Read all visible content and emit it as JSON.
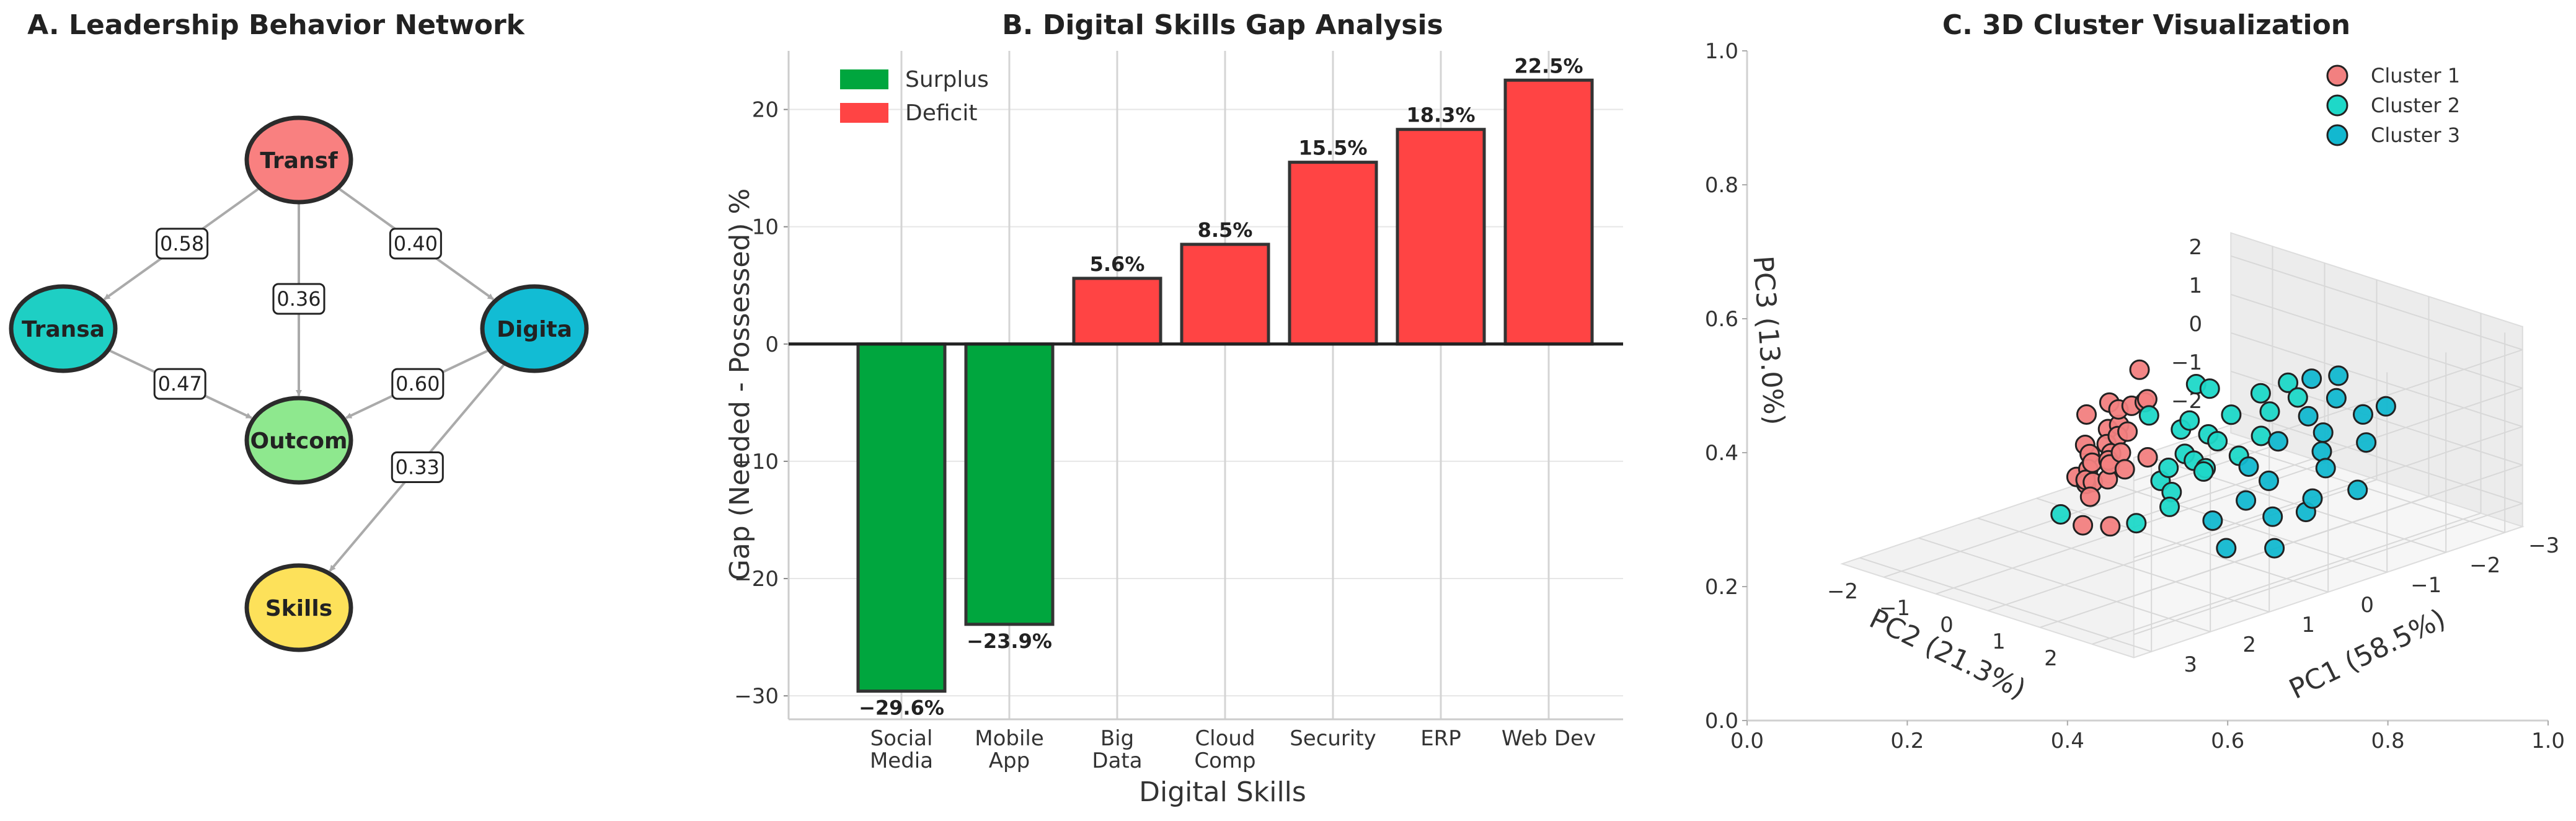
{
  "chart_data": [
    {
      "type": "network",
      "title": "A. Leadership Behavior Network",
      "nodes": [
        {
          "id": "Transf",
          "label": "Transf",
          "color": "#f98080"
        },
        {
          "id": "Transa",
          "label": "Transa",
          "color": "#1ecfc4"
        },
        {
          "id": "Digita",
          "label": "Digita",
          "color": "#12bcd4"
        },
        {
          "id": "Outcom",
          "label": "Outcom",
          "color": "#8ee88e"
        },
        {
          "id": "Skills",
          "label": "Skills",
          "color": "#fde15a"
        }
      ],
      "edges": [
        {
          "from": "Transf",
          "to": "Transa",
          "weight": "0.58"
        },
        {
          "from": "Transf",
          "to": "Outcom",
          "weight": "0.36"
        },
        {
          "from": "Transf",
          "to": "Digita",
          "weight": "0.40"
        },
        {
          "from": "Transa",
          "to": "Outcom",
          "weight": "0.47"
        },
        {
          "from": "Digita",
          "to": "Outcom",
          "weight": "0.60"
        },
        {
          "from": "Digita",
          "to": "Skills",
          "weight": "0.33"
        }
      ]
    },
    {
      "type": "bar",
      "title": "B. Digital Skills Gap Analysis",
      "xlabel": "Digital Skills",
      "ylabel": "Gap (Needed - Possessed) %",
      "categories": [
        "Social\nMedia",
        "Mobile\nApp",
        "Big\nData",
        "Cloud\nComp",
        "Security",
        "ERP",
        "Web Dev"
      ],
      "values": [
        -29.6,
        -23.9,
        5.6,
        8.5,
        15.5,
        18.3,
        22.5
      ],
      "value_labels": [
        "−29.6%",
        "−23.9%",
        "5.6%",
        "8.5%",
        "15.5%",
        "18.3%",
        "22.5%"
      ],
      "ylim": [
        -32,
        25
      ],
      "yticks": [
        -30,
        -20,
        -10,
        0,
        10,
        20
      ],
      "ytick_labels": [
        "−30",
        "−20",
        "−10",
        "0",
        "10",
        "20"
      ],
      "legend": [
        {
          "name": "Surplus",
          "color": "#00a63e"
        },
        {
          "name": "Deficit",
          "color": "#ff4444"
        }
      ],
      "legend_position": "top-left",
      "grid": true
    },
    {
      "type": "scatter3d",
      "title": "C. 3D Cluster Visualization",
      "xlabel": "PC1 (58.5%)",
      "ylabel": "PC2 (21.3%)",
      "zlabel": "PC3 (13.0%)",
      "frame_ticks": [
        "0.0",
        "0.2",
        "0.4",
        "0.6",
        "0.8",
        "1.0"
      ],
      "x_ticks": [
        "−3",
        "−2",
        "−1",
        "0",
        "1",
        "2",
        "3"
      ],
      "y_ticks": [
        "−2",
        "−1",
        "0",
        "1",
        "2"
      ],
      "z_ticks": [
        "−2",
        "−1",
        "0",
        "1",
        "2"
      ],
      "legend_position": "top-right",
      "series": [
        {
          "name": "Cluster 1",
          "color": "#f28080",
          "points": [
            [
              -0.6,
              -1.5,
              1.0
            ],
            [
              -0.6,
              -1.4,
              0.2
            ],
            [
              0.5,
              -1.3,
              -0.3
            ],
            [
              0.3,
              -1.5,
              0.3
            ],
            [
              0.0,
              -1.4,
              0.5
            ],
            [
              -0.2,
              -1.2,
              0.4
            ],
            [
              0.2,
              -1.2,
              0.0
            ],
            [
              0.6,
              -1.1,
              -0.4
            ],
            [
              0.4,
              -1.0,
              -0.2
            ],
            [
              0.1,
              -1.1,
              0.1
            ],
            [
              0.8,
              -0.9,
              -0.6
            ],
            [
              0.5,
              -0.8,
              -0.3
            ],
            [
              0.3,
              -0.9,
              0.0
            ],
            [
              0.9,
              -0.7,
              -0.8
            ],
            [
              1.0,
              -0.9,
              -0.7
            ],
            [
              0.7,
              -0.6,
              -0.4
            ],
            [
              0.6,
              -0.5,
              -0.1
            ],
            [
              1.1,
              -0.6,
              -0.7
            ],
            [
              1.2,
              -0.5,
              -0.5
            ],
            [
              1.0,
              -0.3,
              -0.5
            ],
            [
              0.8,
              -0.2,
              -0.3
            ],
            [
              0.5,
              -0.1,
              -0.1
            ],
            [
              1.3,
              -0.3,
              -0.8
            ],
            [
              1.6,
              -0.1,
              -1.3
            ],
            [
              1.4,
              0.2,
              -1.3
            ],
            [
              0.2,
              -1.0,
              0.6
            ],
            [
              0.9,
              -0.4,
              -0.1
            ],
            [
              1.0,
              -0.6,
              -0.2
            ],
            [
              0.4,
              -0.6,
              0.3
            ],
            [
              -0.2,
              -0.9,
              0.7
            ]
          ]
        },
        {
          "name": "Cluster 2",
          "color": "#1ed8c8",
          "points": [
            [
              -0.2,
              0.3,
              1.5
            ],
            [
              0.2,
              0.2,
              0.6
            ],
            [
              -0.3,
              0.6,
              0.9
            ],
            [
              0.0,
              0.5,
              0.5
            ],
            [
              0.4,
              0.5,
              0.2
            ],
            [
              0.6,
              0.9,
              0.3
            ],
            [
              0.5,
              0.3,
              -0.2
            ],
            [
              0.9,
              0.6,
              -0.2
            ],
            [
              -0.8,
              0.6,
              1.2
            ],
            [
              -1.0,
              0.9,
              1.5
            ],
            [
              -0.6,
              1.0,
              1.0
            ],
            [
              -0.9,
              1.2,
              1.3
            ],
            [
              0.1,
              1.2,
              0.3
            ],
            [
              0.4,
              0.9,
              0.0
            ],
            [
              0.8,
              0.7,
              -0.5
            ],
            [
              1.4,
              0.7,
              -1.0
            ],
            [
              -0.3,
              -0.2,
              0.4
            ],
            [
              0.3,
              -0.3,
              0.8
            ],
            [
              1.8,
              -0.3,
              -1.0
            ],
            [
              -0.5,
              -0.3,
              1.2
            ],
            [
              0.2,
              0.9,
              0.6
            ],
            [
              1.1,
              1.0,
              -0.6
            ],
            [
              0.7,
              1.2,
              0.2
            ],
            [
              -0.1,
              1.4,
              0.8
            ]
          ]
        },
        {
          "name": "Cluster 3",
          "color": "#12b8d0",
          "points": [
            [
              -1.5,
              1.3,
              1.6
            ],
            [
              -1.2,
              1.6,
              1.3
            ],
            [
              -1.3,
              2.0,
              1.0
            ],
            [
              -1.6,
              2.1,
              1.1
            ],
            [
              -0.8,
              1.8,
              0.7
            ],
            [
              -0.4,
              2.3,
              0.2
            ],
            [
              0.0,
              2.5,
              -0.3
            ],
            [
              -0.5,
              2.8,
              -0.2
            ],
            [
              0.5,
              2.3,
              -0.6
            ],
            [
              0.2,
              2.6,
              -0.5
            ],
            [
              -0.9,
              1.4,
              0.9
            ],
            [
              -0.3,
              1.5,
              0.6
            ],
            [
              0.6,
              1.9,
              -0.3
            ],
            [
              0.3,
              2.0,
              0.1
            ],
            [
              -1.0,
              2.4,
              0.6
            ],
            [
              0.9,
              1.6,
              -0.8
            ],
            [
              1.2,
              2.2,
              -1.1
            ],
            [
              -1.4,
              0.9,
              1.4
            ],
            [
              -0.6,
              2.0,
              0.4
            ],
            [
              1.0,
              2.9,
              -0.9
            ],
            [
              0.2,
              1.5,
              0.2
            ]
          ]
        }
      ]
    }
  ]
}
